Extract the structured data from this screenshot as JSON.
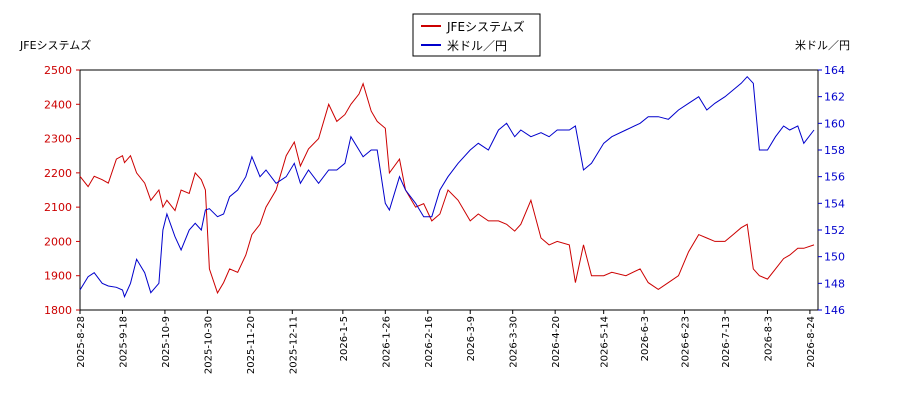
{
  "chart_data": {
    "type": "line",
    "y_label": "JFEシステムズ",
    "y2_label": "米ドル／円",
    "legend": "top",
    "x": [
      "2025-8-28",
      "2025-9-1",
      "2025-9-4",
      "2025-9-8",
      "2025-9-11",
      "2025-9-15",
      "2025-9-18",
      "2025-9-19",
      "2025-9-22",
      "2025-9-25",
      "2025-9-29",
      "2025-10-2",
      "2025-10-6",
      "2025-10-8",
      "2025-10-10",
      "2025-10-14",
      "2025-10-17",
      "2025-10-21",
      "2025-10-24",
      "2025-10-27",
      "2025-10-29",
      "2025-10-31",
      "2025-11-4",
      "2025-11-7",
      "2025-11-10",
      "2025-11-14",
      "2025-11-18",
      "2025-11-21",
      "2025-11-25",
      "2025-11-28",
      "2025-12-3",
      "2025-12-8",
      "2025-12-12",
      "2025-12-15",
      "2025-12-19",
      "2025-12-24",
      "2025-12-29",
      "2026-1-2",
      "2026-1-6",
      "2026-1-9",
      "2026-1-13",
      "2026-1-15",
      "2026-1-19",
      "2026-1-22",
      "2026-1-26",
      "2026-1-28",
      "2026-2-2",
      "2026-2-5",
      "2026-2-10",
      "2026-2-14",
      "2026-2-18",
      "2026-2-22",
      "2026-2-26",
      "2026-3-3",
      "2026-3-9",
      "2026-3-13",
      "2026-3-18",
      "2026-3-23",
      "2026-3-27",
      "2026-3-31",
      "2026-4-3",
      "2026-4-8",
      "2026-4-13",
      "2026-4-17",
      "2026-4-21",
      "2026-4-27",
      "2026-4-30",
      "2026-5-4",
      "2026-5-8",
      "2026-5-14",
      "2026-5-18",
      "2026-5-25",
      "2026-6-1",
      "2026-6-5",
      "2026-6-10",
      "2026-6-15",
      "2026-6-20",
      "2026-6-25",
      "2026-6-30",
      "2026-7-4",
      "2026-7-8",
      "2026-7-13",
      "2026-7-17",
      "2026-7-21",
      "2026-7-24",
      "2026-7-27",
      "2026-7-30",
      "2026-8-3",
      "2026-8-7",
      "2026-8-11",
      "2026-8-14",
      "2026-8-18",
      "2026-8-21",
      "2026-8-26"
    ],
    "series": [
      {
        "name": "JFEシステムズ",
        "color": "#cc0000",
        "axis": "y",
        "values": [
          2190,
          2160,
          2190,
          2180,
          2170,
          2240,
          2250,
          2230,
          2250,
          2200,
          2170,
          2120,
          2150,
          2100,
          2120,
          2090,
          2150,
          2140,
          2200,
          2180,
          2150,
          1920,
          1850,
          1880,
          1920,
          1910,
          1960,
          2020,
          2050,
          2100,
          2150,
          2250,
          2290,
          2220,
          2270,
          2300,
          2400,
          2350,
          2370,
          2400,
          2430,
          2460,
          2380,
          2350,
          2330,
          2200,
          2240,
          2150,
          2100,
          2110,
          2060,
          2080,
          2150,
          2120,
          2060,
          2080,
          2060,
          2060,
          2050,
          2030,
          2050,
          2120,
          2010,
          1990,
          2000,
          1990,
          1880,
          1990,
          1900,
          1900,
          1910,
          1900,
          1920,
          1880,
          1860,
          1880,
          1900,
          1970,
          2020,
          2010,
          2000,
          2000,
          2020,
          2040,
          2050,
          1920,
          1900,
          1890,
          1920,
          1950,
          1960,
          1980,
          1980,
          1990
        ]
      },
      {
        "name": "米ドル／円",
        "color": "#0000cc",
        "axis": "y2",
        "values": [
          147.5,
          148.5,
          148.8,
          148.0,
          147.8,
          147.7,
          147.5,
          147.0,
          148.0,
          149.8,
          148.8,
          147.3,
          148.0,
          152.0,
          153.2,
          151.5,
          150.5,
          152.0,
          152.5,
          152.0,
          153.5,
          153.6,
          153.0,
          153.2,
          154.5,
          155.0,
          156.0,
          157.5,
          156.0,
          156.5,
          155.5,
          156.0,
          157.0,
          155.5,
          156.5,
          155.5,
          156.5,
          156.5,
          157.0,
          159.0,
          158.0,
          157.5,
          158.0,
          158.0,
          154.0,
          153.5,
          156.0,
          155.0,
          154.0,
          153.0,
          153.0,
          155.0,
          156.0,
          157.0,
          158.0,
          158.5,
          158.0,
          159.5,
          160.0,
          159.0,
          159.5,
          159.0,
          159.3,
          159.0,
          159.5,
          159.5,
          159.8,
          156.5,
          157.0,
          158.5,
          159.0,
          159.5,
          160.0,
          160.5,
          160.5,
          160.3,
          161.0,
          161.5,
          162.0,
          161.0,
          161.5,
          162.0,
          162.5,
          163.0,
          163.5,
          163.0,
          158.0,
          158.0,
          159.0,
          159.8,
          159.5,
          159.8,
          158.5,
          159.5
        ]
      }
    ],
    "xlim": [
      "2025-8-28",
      "2026-8-28"
    ],
    "xticks": [
      "2025-8-28",
      "2025-9-18",
      "2025-10-9",
      "2025-10-30",
      "2025-11-20",
      "2025-12-11",
      "2026-1-5",
      "2026-1-26",
      "2026-2-16",
      "2026-3-9",
      "2026-3-30",
      "2026-4-20",
      "2026-5-14",
      "2026-6-3",
      "2026-6-23",
      "2026-7-13",
      "2026-8-3",
      "2026-8-24"
    ],
    "ylim": [
      1800,
      2500
    ],
    "yticks": [
      1800,
      1900,
      2000,
      2100,
      2200,
      2300,
      2400,
      2500
    ],
    "y2lim": [
      146,
      164
    ],
    "y2ticks": [
      146,
      148,
      150,
      152,
      154,
      156,
      158,
      160,
      162,
      164
    ]
  }
}
